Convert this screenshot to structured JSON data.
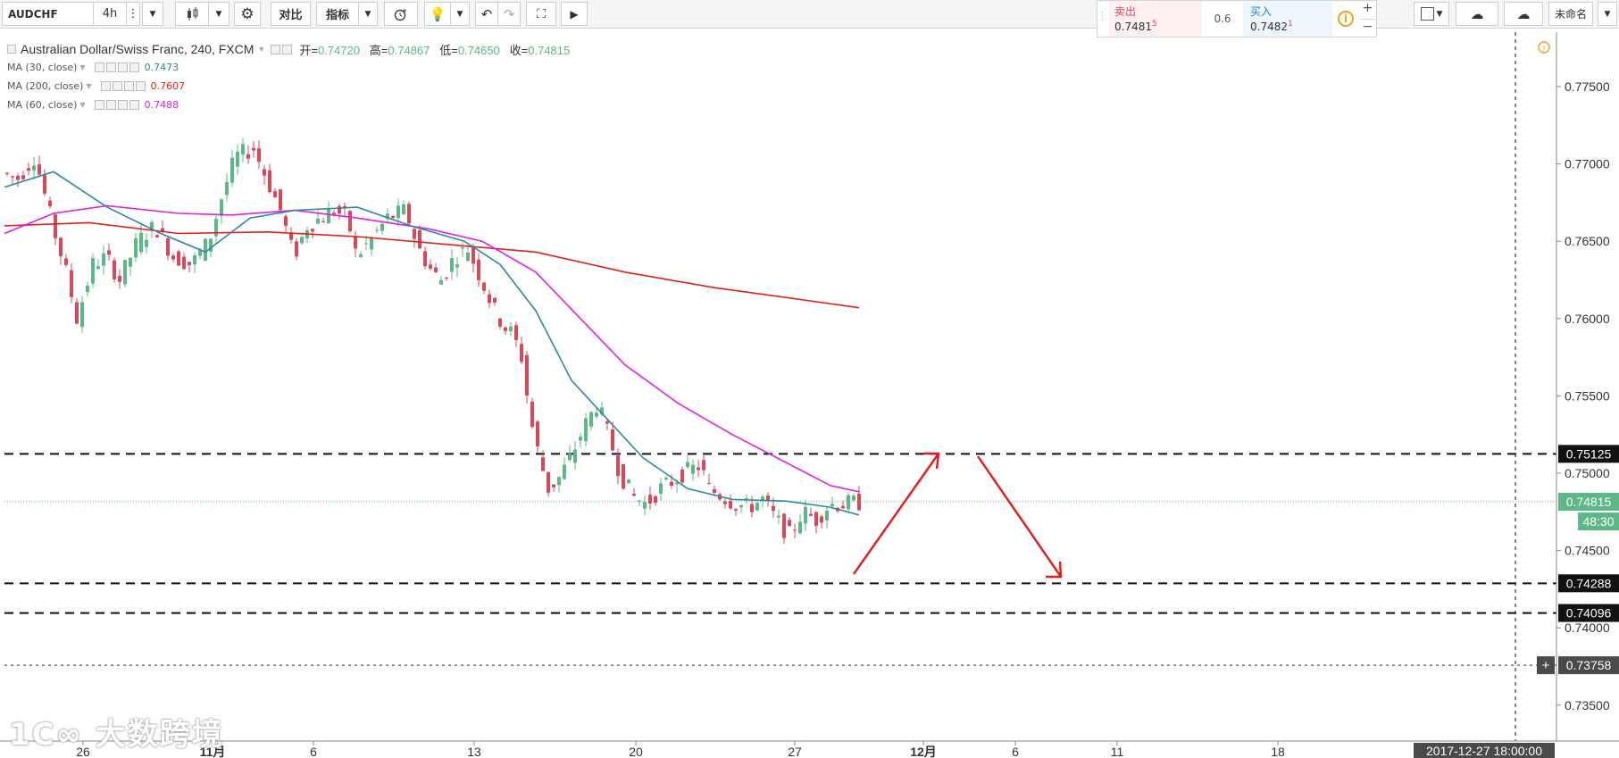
{
  "toolbar": {
    "symbol": "AUDCHF",
    "interval": "4h",
    "compare_label": "对比",
    "indicators_label": "指标",
    "unnamed_label": "未命名"
  },
  "price_widget": {
    "sell_label": "卖出",
    "sell_price": "0.7481",
    "sell_sup": "5",
    "spread": "0.6",
    "buy_label": "买入",
    "buy_price": "0.7482",
    "buy_sup": "1"
  },
  "legend": {
    "title": "Australian Dollar/Swiss Franc, 240, FXCM",
    "open_label": "开=",
    "open": "0.74720",
    "high_label": "高=",
    "high": "0.74867",
    "low_label": "低=",
    "low": "0.74650",
    "close_label": "收=",
    "close": "0.74815",
    "indicators": [
      {
        "label": "MA (30, close)",
        "value": "0.7473",
        "color": "#2b8a9c"
      },
      {
        "label": "MA (200, close)",
        "value": "0.7607",
        "color": "#e0201b"
      },
      {
        "label": "MA (60, close)",
        "value": "0.7488",
        "color": "#e020e0"
      }
    ]
  },
  "colors": {
    "up": "#5cb886",
    "down": "#d9475a",
    "ma30": "#2b8a9c",
    "ma200": "#e0201b",
    "ma60": "#e020e0",
    "arrow": "#e3191c"
  },
  "chart_data": {
    "type": "candlestick",
    "symbol": "AUDCHF",
    "timeframe": "240",
    "ylim": [
      0.7325,
      0.778
    ],
    "y_ticks": [
      "0.77500",
      "0.77000",
      "0.76500",
      "0.76000",
      "0.75500",
      "0.75000",
      "0.74500",
      "0.74000",
      "0.73500"
    ],
    "x_ticks": [
      "26",
      "11月",
      "6",
      "13",
      "20",
      "27",
      "12月",
      "6",
      "11",
      "18"
    ],
    "current_price": "0.74815",
    "countdown": "48:30",
    "crosshair_time": "2017-12-27 18:00:00",
    "horizontal_lines": [
      {
        "value": 0.75125,
        "label": "0.75125"
      },
      {
        "value": 0.74288,
        "label": "0.74288"
      },
      {
        "value": 0.74096,
        "label": "0.74096"
      },
      {
        "value": 0.73758,
        "label": "0.73758"
      }
    ],
    "ma200_end": 0.7607,
    "ma60_end": 0.7488,
    "ma30_end": 0.7473
  }
}
